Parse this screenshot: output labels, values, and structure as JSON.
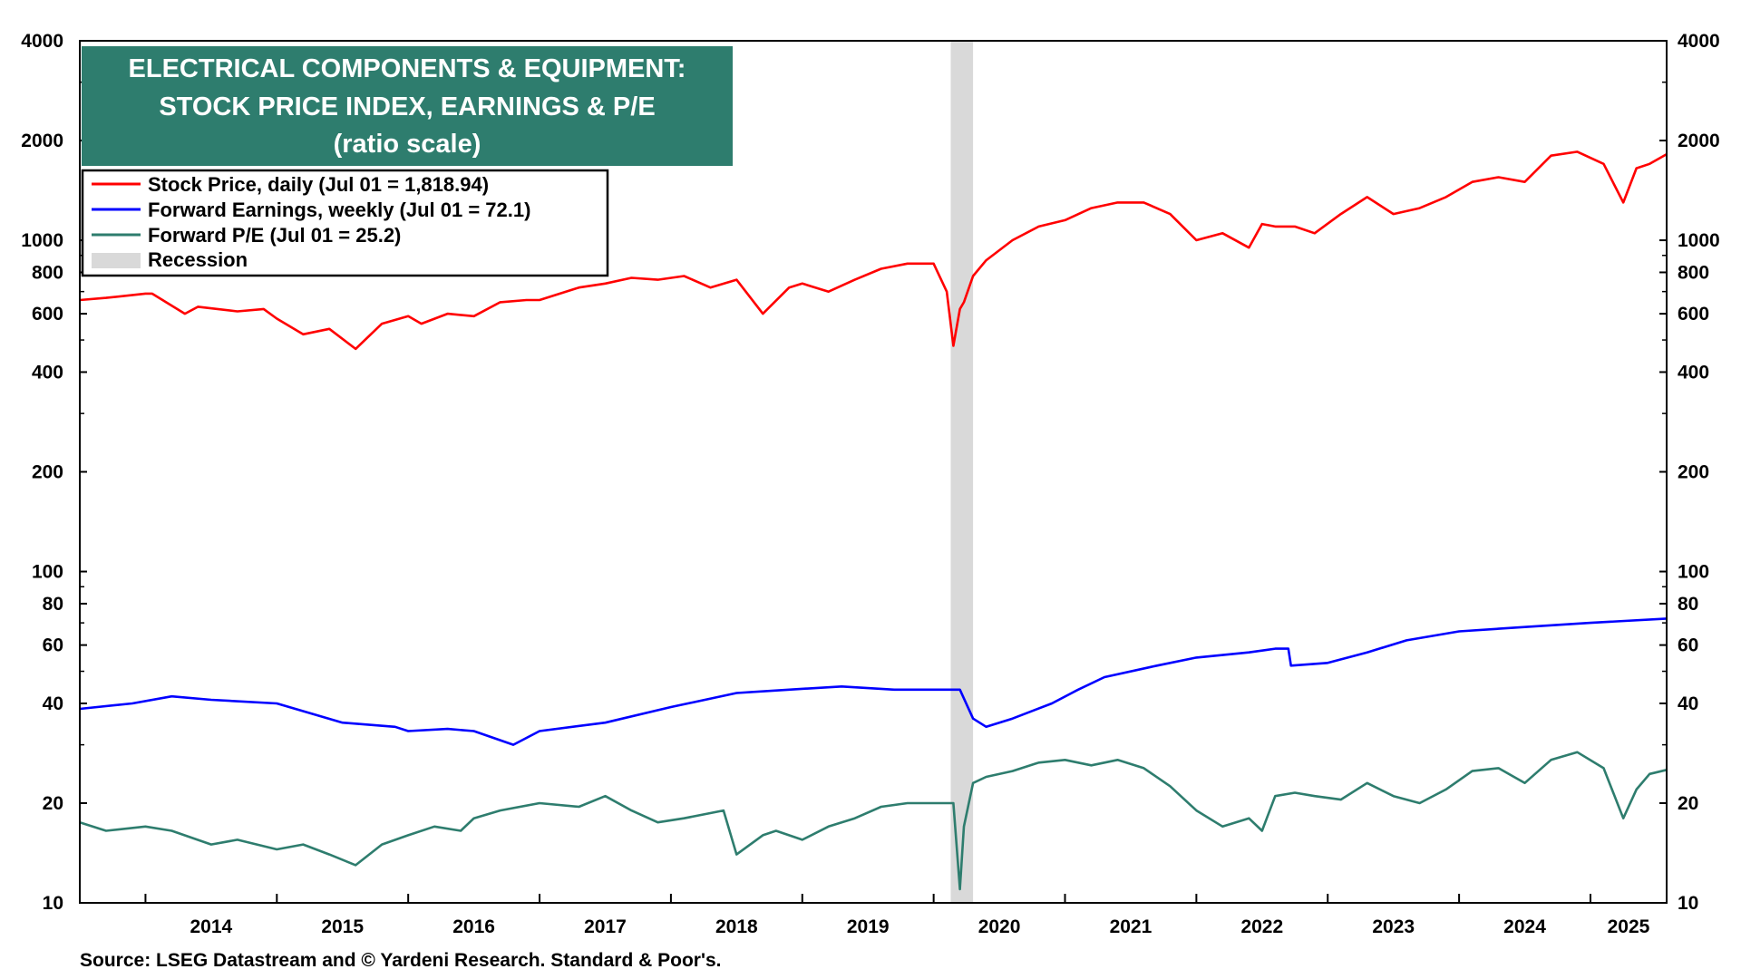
{
  "chart_data": {
    "type": "line",
    "title_lines": [
      "ELECTRICAL COMPONENTS & EQUIPMENT:",
      "STOCK PRICE INDEX, EARNINGS & P/E",
      "(ratio scale)"
    ],
    "source": "Source: LSEG Datastream and © Yardeni Research. Standard & Poor's.",
    "y_scale": "log",
    "ylim": [
      10,
      4000
    ],
    "y_ticks": [
      10,
      20,
      40,
      60,
      80,
      100,
      200,
      400,
      600,
      800,
      1000,
      2000,
      4000
    ],
    "x_range": [
      2013.5,
      2025.58
    ],
    "x_ticks": [
      "2014",
      "2015",
      "2016",
      "2017",
      "2018",
      "2019",
      "2020",
      "2021",
      "2022",
      "2023",
      "2024",
      "2025"
    ],
    "grid": false,
    "legend_placement": "top-left",
    "colors": {
      "title_bg": "#2e7d6e",
      "recession": "#d9d9d9",
      "price": "#ff0000",
      "earnings": "#0000ff",
      "pe": "#2e7d6e"
    },
    "recession": {
      "label": "Recession",
      "start": 2020.13,
      "end": 2020.3
    },
    "series": [
      {
        "name": "Stock Price, daily (Jul 01 = 1,818.94)",
        "color": "#ff0000",
        "x": [
          2013.5,
          2013.7,
          2014.0,
          2014.05,
          2014.3,
          2014.4,
          2014.7,
          2014.9,
          2015.0,
          2015.2,
          2015.4,
          2015.6,
          2015.8,
          2016.0,
          2016.1,
          2016.3,
          2016.5,
          2016.7,
          2016.9,
          2017.0,
          2017.3,
          2017.5,
          2017.7,
          2017.9,
          2018.1,
          2018.3,
          2018.5,
          2018.7,
          2018.9,
          2019.0,
          2019.2,
          2019.4,
          2019.6,
          2019.8,
          2020.0,
          2020.1,
          2020.15,
          2020.2,
          2020.23,
          2020.3,
          2020.4,
          2020.6,
          2020.8,
          2021.0,
          2021.2,
          2021.4,
          2021.6,
          2021.8,
          2022.0,
          2022.2,
          2022.4,
          2022.5,
          2022.6,
          2022.75,
          2022.9,
          2023.1,
          2023.3,
          2023.5,
          2023.7,
          2023.9,
          2024.1,
          2024.3,
          2024.5,
          2024.7,
          2024.9,
          2025.1,
          2025.25,
          2025.35,
          2025.45,
          2025.58
        ],
        "values": [
          660,
          670,
          690,
          690,
          600,
          630,
          610,
          620,
          580,
          520,
          540,
          470,
          560,
          590,
          560,
          600,
          590,
          650,
          660,
          660,
          720,
          740,
          770,
          760,
          780,
          720,
          760,
          600,
          720,
          740,
          700,
          760,
          820,
          850,
          850,
          700,
          480,
          620,
          650,
          780,
          870,
          1000,
          1100,
          1150,
          1250,
          1300,
          1300,
          1200,
          1000,
          1050,
          950,
          1120,
          1100,
          1100,
          1050,
          1200,
          1350,
          1200,
          1250,
          1350,
          1500,
          1550,
          1500,
          1800,
          1850,
          1700,
          1300,
          1650,
          1700,
          1819
        ]
      },
      {
        "name": "Forward Earnings, weekly (Jul 01 = 72.1)",
        "color": "#0000ff",
        "x": [
          2013.5,
          2013.9,
          2014.2,
          2014.5,
          2015.0,
          2015.5,
          2015.9,
          2016.0,
          2016.3,
          2016.5,
          2016.8,
          2017.0,
          2017.5,
          2018.0,
          2018.5,
          2018.9,
          2019.3,
          2019.7,
          2020.0,
          2020.2,
          2020.3,
          2020.4,
          2020.6,
          2020.9,
          2021.1,
          2021.3,
          2021.7,
          2022.0,
          2022.4,
          2022.6,
          2022.7,
          2022.72,
          2023.0,
          2023.3,
          2023.6,
          2024.0,
          2024.5,
          2025.0,
          2025.58
        ],
        "values": [
          38.5,
          40,
          42,
          41,
          40,
          35,
          34,
          33,
          33.5,
          33,
          30,
          33,
          35,
          39,
          43,
          44,
          45,
          44,
          44,
          44,
          36,
          34,
          36,
          40,
          44,
          48,
          52,
          55,
          57,
          58.5,
          58.5,
          52,
          53,
          57,
          62,
          66,
          68,
          70,
          72.1
        ]
      },
      {
        "name": "Forward P/E (Jul 01 = 25.2)",
        "color": "#2e7d6e",
        "x": [
          2013.5,
          2013.7,
          2014.0,
          2014.2,
          2014.5,
          2014.7,
          2015.0,
          2015.2,
          2015.4,
          2015.6,
          2015.8,
          2016.0,
          2016.2,
          2016.4,
          2016.5,
          2016.7,
          2017.0,
          2017.3,
          2017.5,
          2017.7,
          2017.9,
          2018.1,
          2018.4,
          2018.5,
          2018.7,
          2018.8,
          2019.0,
          2019.2,
          2019.4,
          2019.6,
          2019.8,
          2020.0,
          2020.15,
          2020.2,
          2020.23,
          2020.3,
          2020.4,
          2020.6,
          2020.8,
          2021.0,
          2021.2,
          2021.4,
          2021.6,
          2021.8,
          2022.0,
          2022.2,
          2022.4,
          2022.5,
          2022.6,
          2022.75,
          2022.9,
          2023.1,
          2023.3,
          2023.5,
          2023.7,
          2023.9,
          2024.1,
          2024.3,
          2024.5,
          2024.7,
          2024.9,
          2025.1,
          2025.25,
          2025.35,
          2025.45,
          2025.58
        ],
        "values": [
          17.5,
          16.5,
          17,
          16.5,
          15,
          15.5,
          14.5,
          15,
          14,
          13,
          15,
          16,
          17,
          16.5,
          18,
          19,
          20,
          19.5,
          21,
          19,
          17.5,
          18,
          19,
          14,
          16,
          16.5,
          15.5,
          17,
          18,
          19.5,
          20,
          20,
          20,
          11,
          17,
          23,
          24,
          25,
          26.5,
          27,
          26,
          27,
          25.5,
          22.5,
          19,
          17,
          18,
          16.5,
          21,
          21.5,
          21,
          20.5,
          23,
          21,
          20,
          22,
          25,
          25.5,
          23,
          27,
          28.5,
          25.5,
          18,
          22,
          24.5,
          25.2
        ]
      }
    ],
    "legend_extra": "Recession"
  }
}
